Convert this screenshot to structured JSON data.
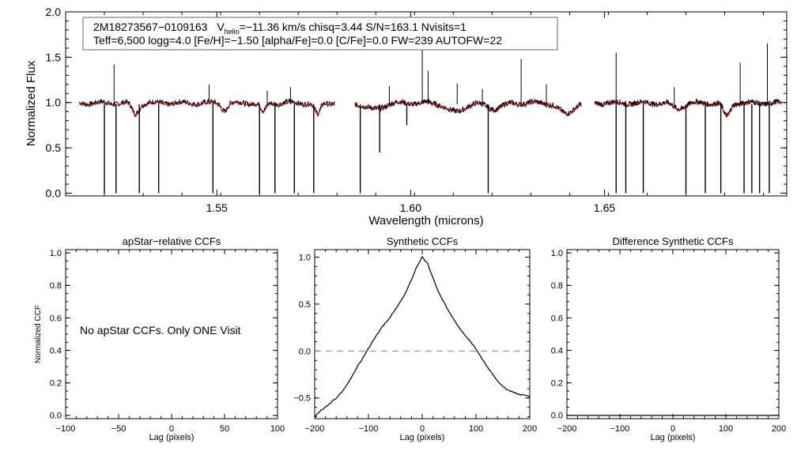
{
  "chart_data": [
    {
      "id": "spectrum",
      "type": "line",
      "xlabel": "Wavelength (microns)",
      "ylabel": "Normalized Flux",
      "xlim": [
        1.511,
        1.697
      ],
      "ylim": [
        -0.03,
        2.0
      ],
      "xticks": [
        1.55,
        1.6,
        1.65
      ],
      "xtick_labels": [
        "1.55",
        "1.60",
        "1.65"
      ],
      "yticks": [
        0.0,
        0.5,
        1.0,
        1.5,
        2.0
      ],
      "ytick_labels": [
        "0.0",
        "0.5",
        "1.0",
        "1.5",
        "2.0"
      ],
      "info_line1_id": "2M18273567−0109163",
      "info_line1_vprefix": "V",
      "info_line1_vsub": "helio",
      "info_line1_rest": "=−11.36 km/s  chisq=3.44  S/N=163.1  Nvisits=1",
      "info_line2": "Teff=6,500 logg=4.0 [Fe/H]=−1.50 [alpha/Fe]=0.0 [C/Fe]=0.0 FW=239 AUTOFW=22",
      "chips": [
        [
          1.5145,
          1.5805
        ],
        [
          1.5855,
          1.644
        ],
        [
          1.6475,
          1.6955
        ]
      ],
      "series": [
        {
          "name": "observed",
          "color": "#000000"
        },
        {
          "name": "model",
          "color": "#dd0000"
        }
      ],
      "emission_spikes": [
        [
          1.5235,
          1.42
        ],
        [
          1.548,
          1.2
        ],
        [
          1.563,
          1.13
        ],
        [
          1.569,
          1.17
        ],
        [
          1.5945,
          1.18
        ],
        [
          1.603,
          1.6
        ],
        [
          1.6045,
          1.35
        ],
        [
          1.612,
          1.21
        ],
        [
          1.6185,
          1.15
        ],
        [
          1.6285,
          1.48
        ],
        [
          1.635,
          1.2
        ],
        [
          1.653,
          1.55
        ],
        [
          1.668,
          1.17
        ],
        [
          1.685,
          1.44
        ],
        [
          1.692,
          1.65
        ]
      ],
      "absorption_drops": [
        [
          1.521,
          0.0
        ],
        [
          1.524,
          0.0
        ],
        [
          1.53,
          0.0
        ],
        [
          1.535,
          0.0
        ],
        [
          1.549,
          0.0
        ],
        [
          1.561,
          0.0
        ],
        [
          1.565,
          0.0
        ],
        [
          1.57,
          0.0
        ],
        [
          1.575,
          0.0
        ],
        [
          1.587,
          0.0
        ],
        [
          1.592,
          0.45
        ],
        [
          1.599,
          0.75
        ],
        [
          1.62,
          0.0
        ],
        [
          1.653,
          0.0
        ],
        [
          1.6555,
          0.0
        ],
        [
          1.66,
          0.0
        ],
        [
          1.671,
          0.0
        ],
        [
          1.676,
          0.0
        ],
        [
          1.68,
          0.0
        ],
        [
          1.686,
          0.0
        ],
        [
          1.688,
          0.0
        ],
        [
          1.69,
          0.0
        ],
        [
          1.6925,
          0.0
        ]
      ],
      "model_dips": [
        [
          1.529,
          0.12,
          0.0012
        ],
        [
          1.552,
          0.08,
          0.001
        ],
        [
          1.562,
          0.1,
          0.001
        ],
        [
          1.576,
          0.13,
          0.001
        ],
        [
          1.5905,
          0.07,
          0.003
        ],
        [
          1.6115,
          0.1,
          0.003
        ],
        [
          1.6215,
          0.06,
          0.003
        ],
        [
          1.64,
          0.12,
          0.0025
        ],
        [
          1.6815,
          0.15,
          0.0012
        ],
        [
          1.669,
          0.06,
          0.002
        ]
      ]
    },
    {
      "id": "ccf_apstar",
      "type": "line",
      "title": "apStar−relative CCFs",
      "xlabel": "Lag (pixels)",
      "ylabel": "Normalized CCF",
      "xlim": [
        -100,
        100
      ],
      "ylim": [
        -0.02,
        1.02
      ],
      "xticks": [
        -100,
        -50,
        0,
        50,
        100
      ],
      "xtick_labels": [
        "−100",
        "−50",
        "0",
        "50",
        "100"
      ],
      "yticks": [
        0.0,
        0.2,
        0.4,
        0.6,
        0.8,
        1.0
      ],
      "ytick_labels": [
        "0.0",
        "0.2",
        "0.4",
        "0.6",
        "0.8",
        "1.0"
      ],
      "message": "No apStar CCFs.  Only ONE Visit",
      "series": []
    },
    {
      "id": "ccf_synthetic",
      "type": "line",
      "title": "Synthetic CCFs",
      "xlabel": "Lag (pixels)",
      "xlim": [
        -200,
        200
      ],
      "ylim": [
        -0.72,
        1.08
      ],
      "xticks": [
        -200,
        -100,
        0,
        100,
        200
      ],
      "xtick_labels": [
        "−200",
        "−100",
        "0",
        "100",
        "200"
      ],
      "yticks": [
        -0.5,
        0.0,
        0.5,
        1.0
      ],
      "ytick_labels": [
        "−0.5",
        "0.0",
        "0.5",
        "1.0"
      ],
      "zero_line": 0.0,
      "series": [
        {
          "name": "synthetic ccf",
          "x": [
            -200,
            -190,
            -180,
            -170,
            -160,
            -150,
            -140,
            -130,
            -120,
            -110,
            -100,
            -90,
            -80,
            -70,
            -60,
            -50,
            -40,
            -30,
            -20,
            -10,
            0,
            10,
            20,
            30,
            40,
            50,
            60,
            70,
            80,
            90,
            100,
            110,
            120,
            130,
            140,
            150,
            160,
            170,
            180,
            190,
            200
          ],
          "y": [
            -0.7,
            -0.64,
            -0.6,
            -0.55,
            -0.5,
            -0.44,
            -0.36,
            -0.26,
            -0.16,
            -0.07,
            0.03,
            0.12,
            0.21,
            0.29,
            0.36,
            0.44,
            0.53,
            0.63,
            0.76,
            0.9,
            1.0,
            0.93,
            0.78,
            0.63,
            0.52,
            0.42,
            0.33,
            0.24,
            0.17,
            0.1,
            0.02,
            -0.07,
            -0.16,
            -0.24,
            -0.32,
            -0.38,
            -0.42,
            -0.44,
            -0.46,
            -0.47,
            -0.48
          ]
        }
      ]
    },
    {
      "id": "ccf_diff",
      "type": "line",
      "title": "Difference Synthetic CCFs",
      "xlabel": "Lag (pixels)",
      "xlim": [
        -200,
        200
      ],
      "ylim": [
        -0.02,
        1.02
      ],
      "xticks": [
        -200,
        -100,
        0,
        100,
        200
      ],
      "xtick_labels": [
        "−200",
        "−100",
        "0",
        "100",
        "200"
      ],
      "yticks": [
        0.0,
        0.2,
        0.4,
        0.6,
        0.8,
        1.0
      ],
      "ytick_labels": [
        "0.0",
        "0.2",
        "0.4",
        "0.6",
        "0.8",
        "1.0"
      ],
      "series": [
        {
          "name": "difference",
          "x": [
            -200,
            200
          ],
          "y": [
            0.0,
            0.0
          ]
        }
      ]
    }
  ]
}
